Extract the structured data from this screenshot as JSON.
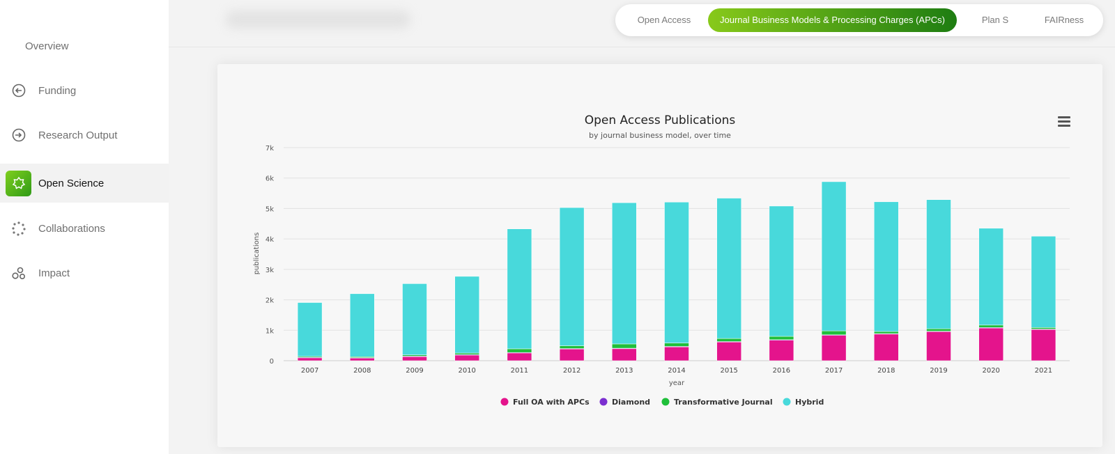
{
  "sidebar": {
    "items": [
      {
        "label": "Overview",
        "icon": "overview"
      },
      {
        "label": "Funding",
        "icon": "arrow-left-circle-icon"
      },
      {
        "label": "Research Output",
        "icon": "arrow-right-circle-icon"
      },
      {
        "label": "Open Science",
        "icon": "open-science-icon",
        "active": true
      },
      {
        "label": "Collaborations",
        "icon": "dots-circle-icon"
      },
      {
        "label": "Impact",
        "icon": "bubbles-icon"
      }
    ]
  },
  "header": {
    "tabs": [
      {
        "label": "Open Access",
        "active": false
      },
      {
        "label": "Journal Business Models & Processing Charges (APCs)",
        "active": true
      },
      {
        "label": "Plan S",
        "active": false
      },
      {
        "label": "FAIRness",
        "active": false
      }
    ]
  },
  "colors": {
    "accent_start": "#88c91a",
    "accent_end": "#1e7d12",
    "full_oa": "#e4148c",
    "diamond": "#7b2fd0",
    "transformative": "#1fbf3a",
    "hybrid": "#48d9db"
  },
  "chart_data": {
    "type": "bar",
    "stacked": true,
    "title": "Open Access Publications",
    "subtitle": "by journal business model, over time",
    "xlabel": "year",
    "ylabel": "publications",
    "ylim": [
      0,
      7000
    ],
    "yticks": [
      0,
      1000,
      2000,
      3000,
      4000,
      5000,
      6000,
      7000
    ],
    "ytick_labels": [
      "0",
      "1k",
      "2k",
      "3k",
      "4k",
      "5k",
      "6k",
      "7k"
    ],
    "legend_position": "bottom-center",
    "categories": [
      "2007",
      "2008",
      "2009",
      "2010",
      "2011",
      "2012",
      "2013",
      "2014",
      "2015",
      "2016",
      "2017",
      "2018",
      "2019",
      "2020",
      "2021"
    ],
    "series": [
      {
        "name": "Full OA with APCs",
        "color": "#e4148c",
        "values": [
          100,
          90,
          140,
          190,
          260,
          390,
          400,
          460,
          620,
          680,
          840,
          880,
          960,
          1080,
          1030
        ]
      },
      {
        "name": "Diamond",
        "color": "#7b2fd0",
        "values": [
          10,
          10,
          10,
          10,
          10,
          10,
          10,
          10,
          10,
          10,
          10,
          10,
          10,
          10,
          10
        ]
      },
      {
        "name": "Transformative Journal",
        "color": "#1fbf3a",
        "values": [
          30,
          30,
          40,
          50,
          120,
          90,
          140,
          110,
          100,
          110,
          130,
          70,
          80,
          80,
          50
        ]
      },
      {
        "name": "Hybrid",
        "color": "#48d9db",
        "values": [
          1770,
          2070,
          2340,
          2520,
          3940,
          4540,
          4640,
          4630,
          4610,
          4280,
          4900,
          4260,
          4240,
          3180,
          3000
        ]
      }
    ]
  }
}
